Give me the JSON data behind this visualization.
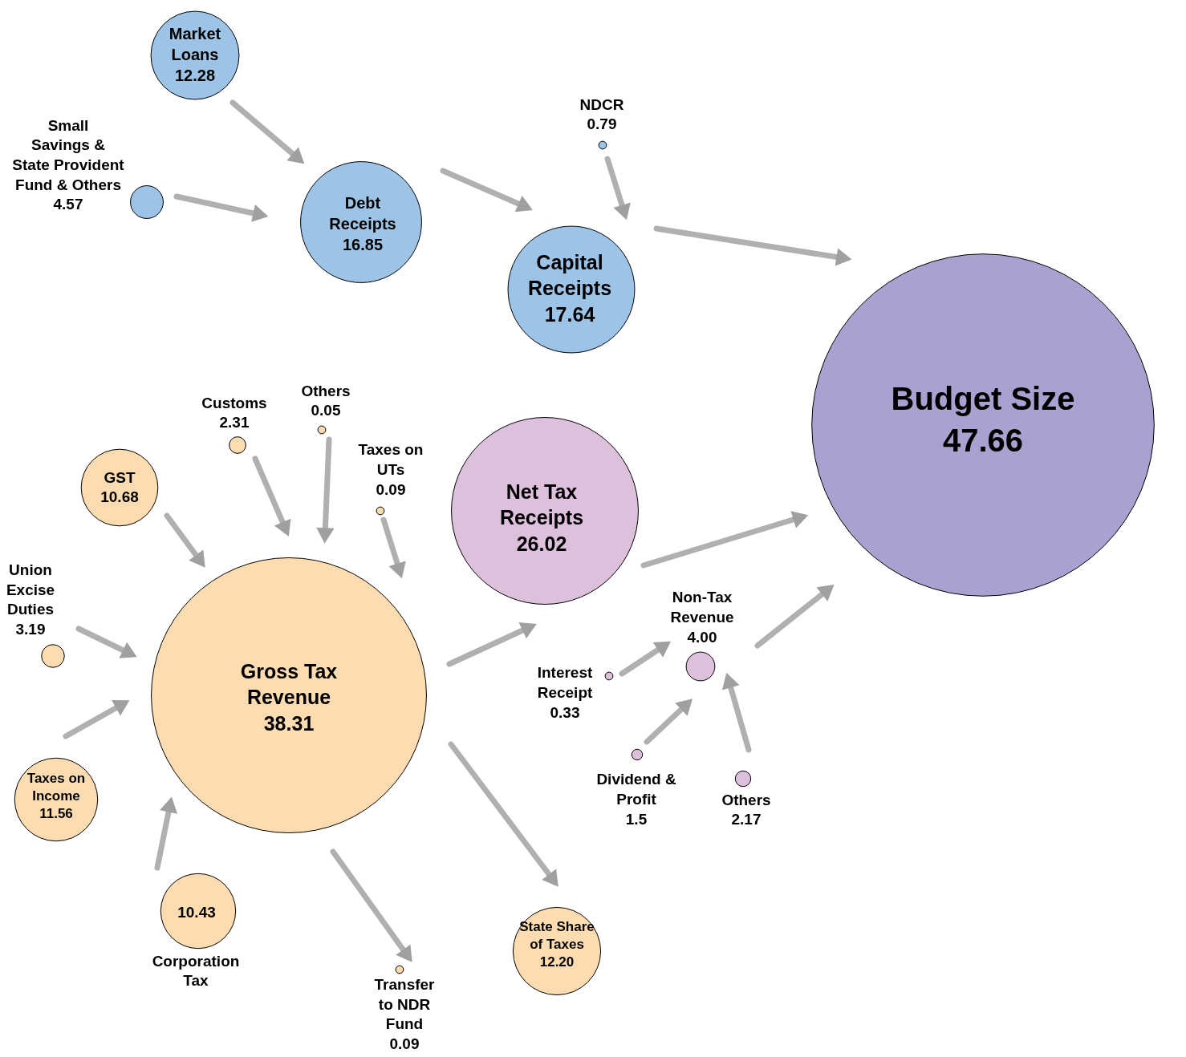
{
  "chart_data": {
    "type": "other",
    "categories": [
      "Market Loans",
      "Small Savings & State Provident Fund & Others",
      "Debt Receipts",
      "NDCR",
      "Capital Receipts",
      "Budget Size",
      "Customs",
      "Others",
      "Taxes on UTs",
      "GST",
      "Union Excise Duties",
      "Gross Tax Revenue",
      "Taxes on Income",
      "Corporation Tax",
      "Transfer to NDR Fund",
      "State Share of Taxes",
      "Net Tax Receipts",
      "Non-Tax Revenue",
      "Interest Receipt",
      "Dividend & Profit",
      "Others"
    ],
    "values": [
      12.28,
      4.57,
      16.85,
      0.79,
      17.64,
      47.66,
      2.31,
      0.05,
      0.09,
      10.68,
      3.19,
      38.31,
      11.56,
      10.43,
      0.09,
      12.2,
      26.02,
      4.0,
      0.33,
      1.5,
      2.17
    ],
    "value_labels": [
      "12.28",
      "4.57",
      "16.85",
      "0.79",
      "17.64",
      "47.66",
      "2.31",
      "0.05",
      "0.09",
      "10.68",
      "3.19",
      "38.31",
      "11.56",
      "10.43",
      "0.09",
      "12.20",
      "26.02",
      "4.00",
      "0.33",
      "1.5",
      "2.17"
    ],
    "colors": [
      "#9dc3e6",
      "#9dc3e6",
      "#9dc3e6",
      "#9dc3e6",
      "#9dc3e6",
      "#a9a1cf",
      "#fcdcb0",
      "#fcdcb0",
      "#fcdcb0",
      "#fcdcb0",
      "#fcdcb0",
      "#fcdcb0",
      "#fcdcb0",
      "#fcdcb0",
      "#fcdcb0",
      "#fcdcb0",
      "#dcc0dc",
      "#dcc0dc",
      "#dcc0dc",
      "#dcc0dc",
      "#dcc0dc"
    ]
  }
}
